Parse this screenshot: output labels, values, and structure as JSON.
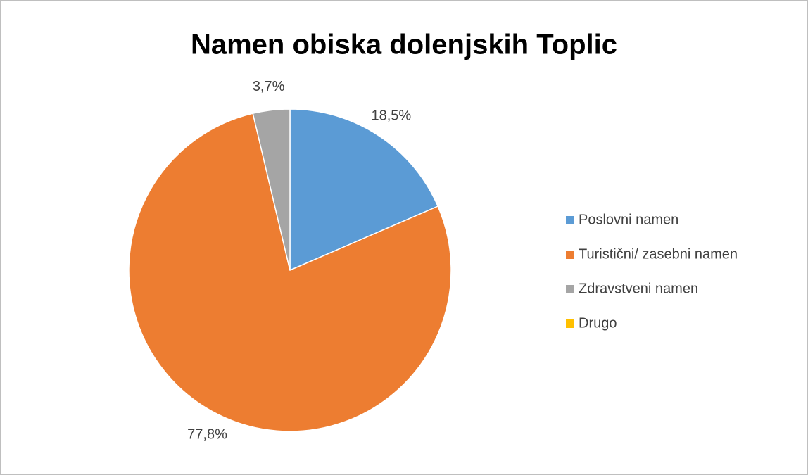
{
  "chart_data": {
    "type": "pie",
    "title": "Namen obiska dolenjskih Toplic",
    "categories": [
      "Poslovni namen",
      "Turistični/ zasebni namen",
      "Zdravstveni namen",
      "Drugo"
    ],
    "values": [
      18.5,
      77.8,
      3.7,
      0
    ],
    "value_labels": [
      "18,5%",
      "77,8%",
      "3,7%",
      null
    ],
    "colors": [
      "#5b9bd5",
      "#ed7d31",
      "#a5a5a5",
      "#ffc000"
    ],
    "legend": "right"
  }
}
